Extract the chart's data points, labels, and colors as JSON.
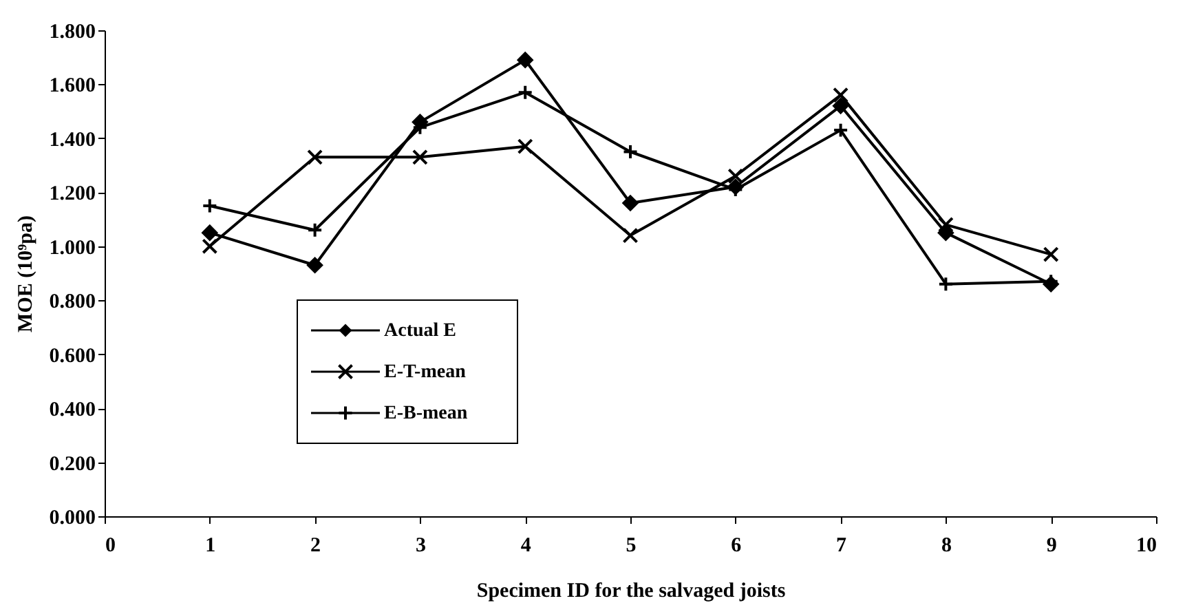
{
  "chart_data": {
    "type": "line",
    "xlabel": "Specimen ID for the salvaged joists",
    "ylabel": "MOE (10⁹pa)",
    "x": [
      1,
      2,
      3,
      4,
      5,
      6,
      7,
      8,
      9
    ],
    "series": [
      {
        "name": "Actual E",
        "color": "#000000",
        "marker": "diamond",
        "values": [
          1.05,
          0.93,
          1.46,
          1.69,
          1.16,
          1.22,
          1.52,
          1.05,
          0.86
        ]
      },
      {
        "name": "E-T-mean",
        "color": "#000000",
        "marker": "x",
        "values": [
          1.0,
          1.33,
          1.33,
          1.37,
          1.04,
          1.26,
          1.56,
          1.08,
          0.97
        ]
      },
      {
        "name": "E-B-mean",
        "color": "#000000",
        "marker": "cross",
        "values": [
          1.15,
          1.06,
          1.44,
          1.57,
          1.35,
          1.21,
          1.43,
          0.86,
          0.87
        ]
      }
    ],
    "xlim": [
      0,
      10
    ],
    "xticks": [
      0,
      1,
      2,
      3,
      4,
      5,
      6,
      7,
      8,
      9,
      10
    ],
    "ylim": [
      0,
      1.8
    ],
    "yticks": [
      {
        "value": 0,
        "label": "0.000"
      },
      {
        "value": 0.2,
        "label": "0.200"
      },
      {
        "value": 0.4,
        "label": "0.400"
      },
      {
        "value": 0.6,
        "label": "0.600"
      },
      {
        "value": 0.8,
        "label": "0.800"
      },
      {
        "value": 1.0,
        "label": "1.000"
      },
      {
        "value": 1.2,
        "label": "1.200"
      },
      {
        "value": 1.4,
        "label": "1.400"
      },
      {
        "value": 1.6,
        "label": "1.600"
      },
      {
        "value": 1.8,
        "label": "1.800"
      }
    ],
    "grid": false,
    "legend": "bottom left",
    "line_style": "solid"
  }
}
